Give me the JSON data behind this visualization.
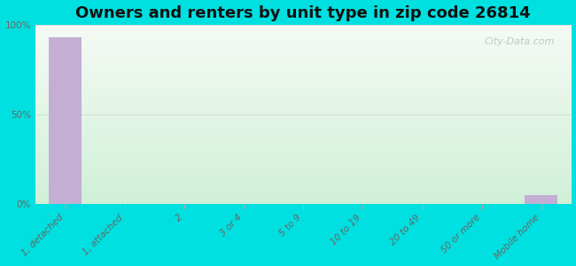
{
  "title": "Owners and renters by unit type in zip code 26814",
  "categories": [
    "1, detached",
    "1, attached",
    "2",
    "3 or 4",
    "5 to 9",
    "10 to 19",
    "20 to 49",
    "50 or more",
    "Mobile home"
  ],
  "values": [
    93,
    0,
    0,
    0,
    0,
    0,
    0,
    0,
    5
  ],
  "bar_color": "#c4aed4",
  "ylim": [
    0,
    100
  ],
  "yticks": [
    0,
    50,
    100
  ],
  "ytick_labels": [
    "0%",
    "50%",
    "100%"
  ],
  "bg_outer": "#00e0e0",
  "bg_grad_top": "#f5faf5",
  "bg_grad_bottom": "#d0f0d8",
  "grid_color": "#cccccc",
  "title_fontsize": 13,
  "tick_fontsize": 7.5,
  "watermark": "City-Data.com"
}
